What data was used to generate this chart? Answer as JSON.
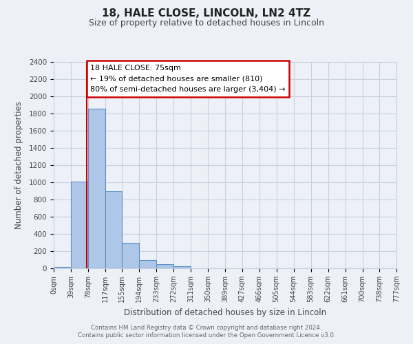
{
  "title1": "18, HALE CLOSE, LINCOLN, LN2 4TZ",
  "title2": "Size of property relative to detached houses in Lincoln",
  "xlabel": "Distribution of detached houses by size in Lincoln",
  "ylabel": "Number of detached properties",
  "bin_edges": [
    0,
    39,
    78,
    117,
    155,
    194,
    233,
    272,
    311,
    350,
    389,
    427,
    466,
    505,
    544,
    583,
    622,
    661,
    700,
    738,
    777
  ],
  "bin_labels": [
    "0sqm",
    "39sqm",
    "78sqm",
    "117sqm",
    "155sqm",
    "194sqm",
    "233sqm",
    "272sqm",
    "311sqm",
    "350sqm",
    "389sqm",
    "427sqm",
    "466sqm",
    "505sqm",
    "544sqm",
    "583sqm",
    "622sqm",
    "661sqm",
    "700sqm",
    "738sqm",
    "777sqm"
  ],
  "bar_heights": [
    20,
    1010,
    1860,
    900,
    300,
    100,
    45,
    25,
    0,
    0,
    0,
    0,
    0,
    0,
    0,
    0,
    0,
    0,
    0,
    0
  ],
  "bar_color": "#aec6e8",
  "bar_edge_color": "#5a8fc2",
  "red_line_x": 75,
  "ylim": [
    0,
    2400
  ],
  "yticks": [
    0,
    200,
    400,
    600,
    800,
    1000,
    1200,
    1400,
    1600,
    1800,
    2000,
    2200,
    2400
  ],
  "annotation_box_text": "18 HALE CLOSE: 75sqm\n← 19% of detached houses are smaller (810)\n80% of semi-detached houses are larger (3,404) →",
  "footer1": "Contains HM Land Registry data © Crown copyright and database right 2024.",
  "footer2": "Contains public sector information licensed under the Open Government Licence v3.0.",
  "bg_color": "#edf1f7",
  "plot_bg_color": "#edf1f7",
  "grid_color": "#c8d0de",
  "annotation_box_color": "#ffffff",
  "annotation_box_edge": "#cc0000"
}
